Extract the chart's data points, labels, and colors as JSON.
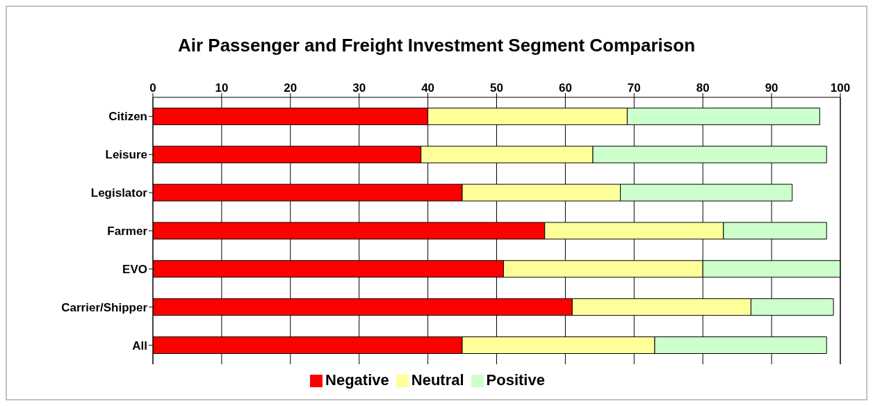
{
  "chart_data": {
    "type": "bar",
    "orientation": "horizontal",
    "stacked": true,
    "title": "Air Passenger and Freight Investment Segment Comparison",
    "categories": [
      "Citizen",
      "Leisure",
      "Legislator",
      "Farmer",
      "EVO",
      "Carrier/Shipper",
      "All"
    ],
    "series": [
      {
        "name": "Negative",
        "color": "#ff0000",
        "values": [
          40,
          39,
          45,
          57,
          51,
          61,
          45
        ]
      },
      {
        "name": "Neutral",
        "color": "#ffff99",
        "values": [
          29,
          25,
          23,
          26,
          29,
          26,
          28
        ]
      },
      {
        "name": "Positive",
        "color": "#ccffcc",
        "values": [
          28,
          34,
          25,
          15,
          20,
          12,
          25
        ]
      }
    ],
    "xlim": [
      0,
      100
    ],
    "xticks": [
      0,
      10,
      20,
      30,
      40,
      50,
      60,
      70,
      80,
      90,
      100
    ],
    "grid": "x",
    "legend": "bottom"
  }
}
